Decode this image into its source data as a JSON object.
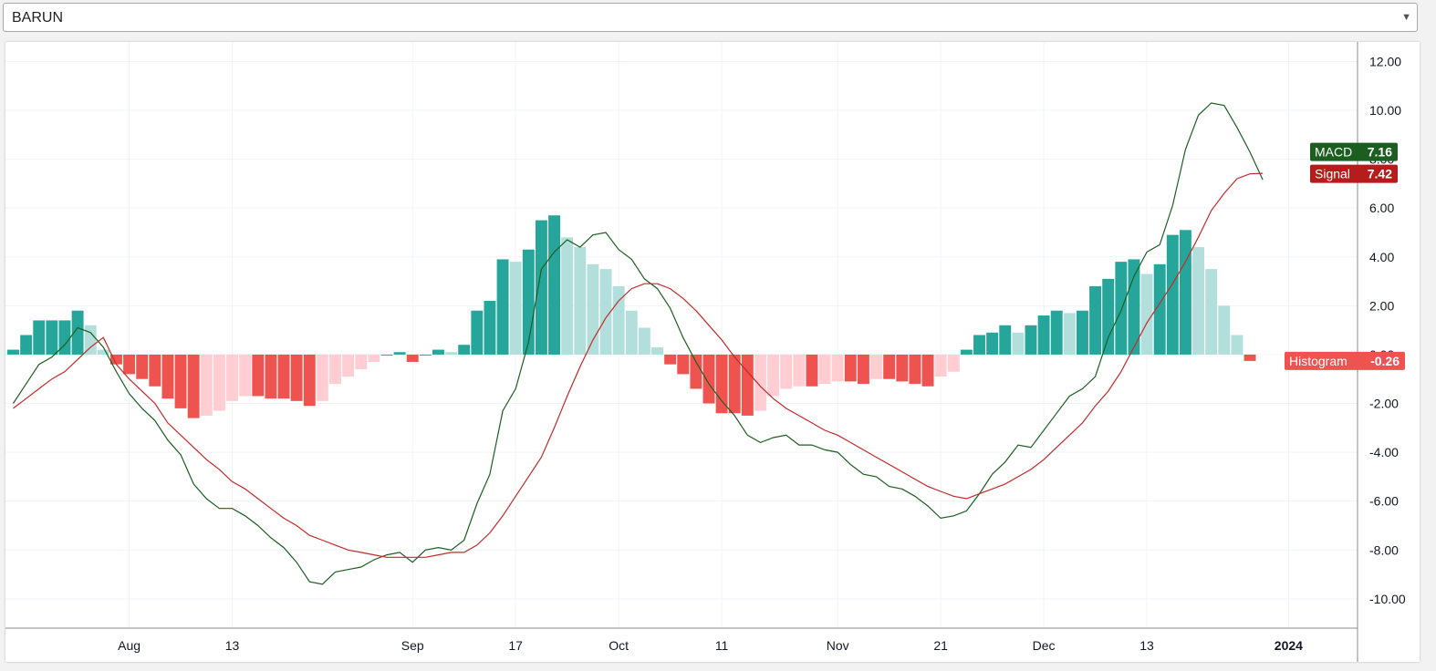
{
  "symbol_select": {
    "value": "BARUN"
  },
  "chart_data": {
    "type": "line",
    "ylim": [
      -11.2,
      12.8
    ],
    "y_ticks": [
      "12.00",
      "10.00",
      "8.00",
      "6.00",
      "4.00",
      "2.00",
      "0.00",
      "-2.00",
      "-4.00",
      "-6.00",
      "-8.00",
      "-10.00"
    ],
    "y_tick_values": [
      12,
      10,
      8,
      6,
      4,
      2,
      0,
      -2,
      -4,
      -6,
      -8,
      -10
    ],
    "x_tick_labels": [
      {
        "label": "Aug",
        "bar": 9
      },
      {
        "label": "13",
        "bar": 17
      },
      {
        "label": "Sep",
        "bar": 31
      },
      {
        "label": "17",
        "bar": 39
      },
      {
        "label": "Oct",
        "bar": 47
      },
      {
        "label": "11",
        "bar": 55
      },
      {
        "label": "Nov",
        "bar": 64
      },
      {
        "label": "21",
        "bar": 72
      },
      {
        "label": "Dec",
        "bar": 80
      },
      {
        "label": "13",
        "bar": 88
      },
      {
        "label": "2024",
        "bar": 99
      }
    ],
    "histogram": [
      0.2,
      0.8,
      1.4,
      1.4,
      1.4,
      1.8,
      1.2,
      0.2,
      -0.4,
      -0.8,
      -1.0,
      -1.3,
      -1.8,
      -2.2,
      -2.6,
      -2.5,
      -2.3,
      -1.9,
      -1.7,
      -1.7,
      -1.8,
      -1.8,
      -1.9,
      -2.1,
      -1.9,
      -1.2,
      -0.9,
      -0.6,
      -0.3,
      0.0,
      0.1,
      -0.3,
      0.0,
      0.2,
      0.1,
      0.4,
      1.8,
      2.2,
      3.9,
      3.8,
      4.3,
      5.5,
      5.7,
      4.8,
      4.4,
      3.7,
      3.5,
      2.8,
      1.8,
      1.1,
      0.3,
      -0.4,
      -0.8,
      -1.4,
      -2.0,
      -2.4,
      -2.4,
      -2.5,
      -2.3,
      -1.7,
      -1.4,
      -1.3,
      -1.3,
      -1.2,
      -1.1,
      -1.1,
      -1.2,
      -1.0,
      -1.0,
      -1.1,
      -1.2,
      -1.3,
      -0.9,
      -0.7,
      0.2,
      0.8,
      0.9,
      1.2,
      0.9,
      1.2,
      1.6,
      1.8,
      1.7,
      1.8,
      2.8,
      3.1,
      3.8,
      3.9,
      3.3,
      3.7,
      4.9,
      5.1,
      4.4,
      3.5,
      2.0,
      0.8,
      -0.26
    ],
    "series": [
      {
        "name": "MACD",
        "color": "#1b5e20",
        "values": [
          -2.0,
          -1.2,
          -0.4,
          -0.1,
          0.4,
          1.1,
          0.9,
          0.3,
          -0.7,
          -1.6,
          -2.2,
          -2.7,
          -3.5,
          -4.1,
          -5.3,
          -5.9,
          -6.3,
          -6.3,
          -6.6,
          -7.0,
          -7.5,
          -7.9,
          -8.5,
          -9.3,
          -9.4,
          -8.9,
          -8.8,
          -8.7,
          -8.4,
          -8.2,
          -8.1,
          -8.5,
          -8.0,
          -7.9,
          -8.0,
          -7.6,
          -6.1,
          -4.9,
          -2.3,
          -1.4,
          0.5,
          3.5,
          4.2,
          4.7,
          4.4,
          4.9,
          5.0,
          4.3,
          3.9,
          3.1,
          2.7,
          1.9,
          0.7,
          -0.3,
          -1.2,
          -1.9,
          -2.5,
          -3.3,
          -3.6,
          -3.4,
          -3.3,
          -3.7,
          -3.7,
          -3.9,
          -4.0,
          -4.5,
          -4.9,
          -5.0,
          -5.4,
          -5.5,
          -5.8,
          -6.2,
          -6.7,
          -6.6,
          -6.4,
          -5.7,
          -4.9,
          -4.4,
          -3.7,
          -3.8,
          -3.1,
          -2.4,
          -1.7,
          -1.4,
          -0.9,
          0.7,
          1.8,
          3.2,
          4.2,
          4.5,
          6.1,
          8.4,
          9.8,
          10.3,
          10.2,
          9.3,
          8.3,
          7.16
        ]
      },
      {
        "name": "Signal",
        "color": "#c62828",
        "values": [
          -2.2,
          -1.8,
          -1.4,
          -1.0,
          -0.7,
          -0.2,
          0.3,
          0.7,
          -0.4,
          -1.0,
          -1.5,
          -2.0,
          -2.8,
          -3.3,
          -3.8,
          -4.3,
          -4.7,
          -5.2,
          -5.5,
          -5.9,
          -6.3,
          -6.7,
          -7.0,
          -7.4,
          -7.6,
          -7.8,
          -8.0,
          -8.1,
          -8.2,
          -8.3,
          -8.3,
          -8.3,
          -8.3,
          -8.2,
          -8.1,
          -8.1,
          -7.8,
          -7.3,
          -6.6,
          -5.8,
          -5.0,
          -4.2,
          -3.0,
          -1.7,
          -0.5,
          0.6,
          1.5,
          2.2,
          2.7,
          2.9,
          2.9,
          2.7,
          2.3,
          1.8,
          1.2,
          0.6,
          -0.1,
          -0.7,
          -1.3,
          -1.8,
          -2.2,
          -2.5,
          -2.8,
          -3.1,
          -3.3,
          -3.6,
          -3.9,
          -4.2,
          -4.5,
          -4.8,
          -5.1,
          -5.4,
          -5.6,
          -5.8,
          -5.9,
          -5.7,
          -5.5,
          -5.3,
          -5.0,
          -4.7,
          -4.3,
          -3.8,
          -3.3,
          -2.8,
          -2.1,
          -1.5,
          -0.7,
          0.3,
          1.3,
          2.1,
          2.9,
          3.8,
          4.8,
          5.9,
          6.6,
          7.2,
          7.4,
          7.42
        ]
      }
    ],
    "price_labels": [
      {
        "name": "Signal",
        "value": "7.42",
        "color": "#b71c1c"
      },
      {
        "name": "MACD",
        "value": "7.16",
        "color": "#1b5e20"
      },
      {
        "name": "Histogram",
        "value": "-0.26",
        "color": "#ef5350"
      }
    ],
    "colors": {
      "hist_pos_rising": "#26a69a",
      "hist_pos_falling": "#b2dfdb",
      "hist_neg_falling": "#ef5350",
      "hist_neg_rising": "#ffcdd2",
      "grid": "#f0f3fa",
      "axis_text": "#131722"
    },
    "grid": true,
    "current_bar_count": 97
  }
}
